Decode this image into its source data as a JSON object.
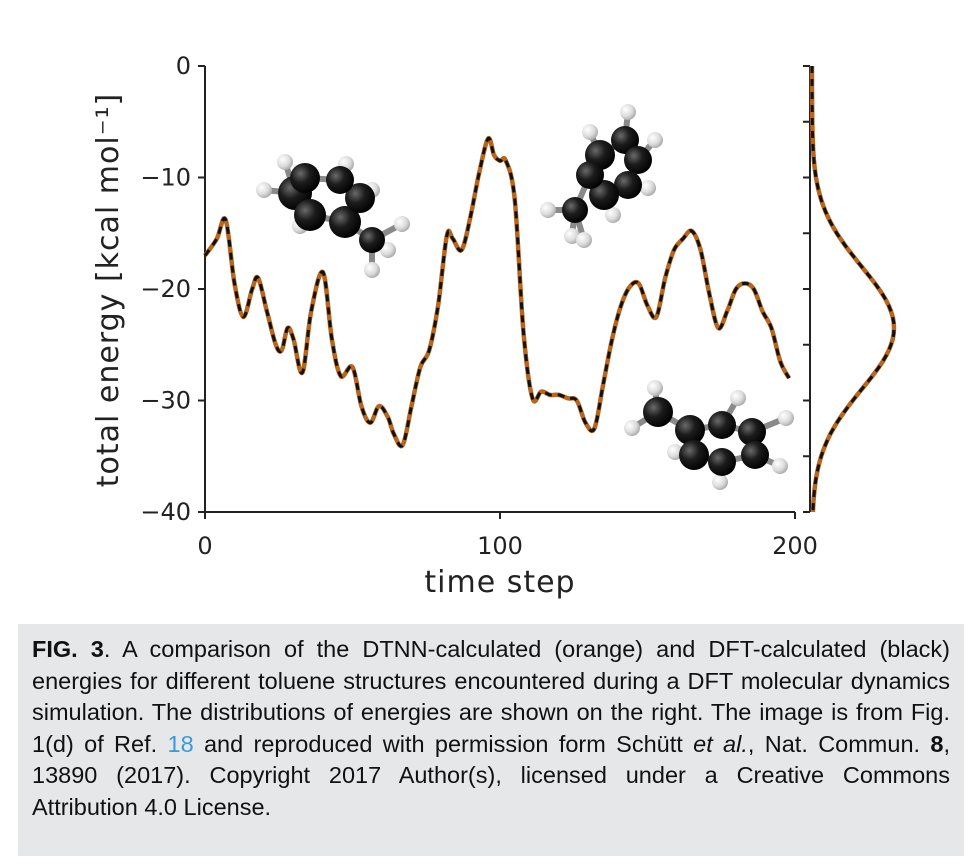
{
  "chart_data": [
    {
      "type": "line",
      "xlabel": "time step",
      "ylabel": "total energy [kcal mol⁻¹]",
      "xlim": [
        0,
        200
      ],
      "ylim": [
        -40,
        0
      ],
      "xticks": [
        "0",
        "100",
        "200"
      ],
      "yticks": [
        "0",
        "−10",
        "−20",
        "−30",
        "−40"
      ],
      "colors": {
        "dtnn": "#b8661e",
        "dft": "#111111"
      },
      "line_styles": {
        "dtnn": "solid",
        "dft": "dashed"
      },
      "x": [
        0,
        4,
        7,
        10,
        13,
        16,
        18,
        21,
        24,
        26,
        28,
        30,
        33,
        36,
        40,
        43,
        46,
        50,
        53,
        56,
        59,
        62,
        64,
        67,
        70,
        73,
        76,
        79,
        82,
        84,
        87,
        90,
        93,
        96,
        98,
        100,
        102,
        105,
        108,
        111,
        114,
        117,
        120,
        123,
        126,
        129,
        132,
        135,
        138,
        141,
        144,
        147,
        150,
        153,
        156,
        159,
        162,
        165,
        168,
        171,
        174,
        177,
        180,
        183,
        186,
        189,
        192,
        195,
        198
      ],
      "series": [
        {
          "values": [
            -17.0,
            -15.5,
            -13.8,
            -19.5,
            -22.5,
            -20.0,
            -19.0,
            -22.0,
            -25.0,
            -25.5,
            -23.5,
            -24.5,
            -27.5,
            -22.0,
            -18.5,
            -24.5,
            -27.8,
            -27.0,
            -30.5,
            -32.0,
            -30.5,
            -31.5,
            -33.0,
            -34.0,
            -30.5,
            -27.0,
            -25.5,
            -21.5,
            -15.2,
            -15.5,
            -16.5,
            -13.5,
            -9.5,
            -6.5,
            -8.0,
            -8.5,
            -8.5,
            -12.0,
            -24.0,
            -29.8,
            -29.2,
            -29.5,
            -29.5,
            -29.8,
            -30.0,
            -32.0,
            -32.5,
            -28.5,
            -24.5,
            -21.5,
            -19.8,
            -19.5,
            -21.5,
            -22.5,
            -19.0,
            -16.5,
            -15.5,
            -14.8,
            -16.5,
            -20.5,
            -23.5,
            -22.0,
            -20.0,
            -19.5,
            -20.0,
            -22.0,
            -23.5,
            -26.5,
            -28.0
          ]
        },
        {
          "values": [
            -17.0,
            -15.5,
            -13.8,
            -19.5,
            -22.5,
            -20.0,
            -19.0,
            -22.0,
            -25.0,
            -25.5,
            -23.5,
            -24.5,
            -27.5,
            -22.0,
            -18.5,
            -24.5,
            -27.8,
            -27.0,
            -30.5,
            -32.0,
            -30.5,
            -31.5,
            -33.0,
            -34.0,
            -30.5,
            -27.0,
            -25.5,
            -21.5,
            -15.2,
            -15.5,
            -16.5,
            -13.5,
            -9.5,
            -6.5,
            -8.0,
            -8.5,
            -8.5,
            -12.0,
            -24.0,
            -29.8,
            -29.2,
            -29.5,
            -29.5,
            -29.8,
            -30.0,
            -32.0,
            -32.5,
            -28.5,
            -24.5,
            -21.5,
            -19.8,
            -19.5,
            -21.5,
            -22.5,
            -19.0,
            -16.5,
            -15.5,
            -14.8,
            -16.5,
            -20.5,
            -23.5,
            -22.0,
            -20.0,
            -19.5,
            -20.0,
            -22.0,
            -23.5,
            -26.5,
            -28.0
          ]
        }
      ]
    },
    {
      "type": "line",
      "orientation": "horizontal distribution of energies (shares energy axis)",
      "ylim": [
        -40,
        0
      ],
      "mean": -23.5,
      "sd": 5.5,
      "colors": {
        "dtnn": "#b8661e",
        "dft": "#111111"
      }
    }
  ],
  "molecules": [
    {
      "name": "toluene-structure"
    },
    {
      "name": "toluene-structure"
    },
    {
      "name": "toluene-structure"
    }
  ],
  "caption": {
    "label": "FIG. 3",
    "t1": ". A comparison of the DTNN-calculated (orange) and DFT-calculated (black) energies for different toluene structures encountered during a DFT molecular dynamics simulation. The distributions of energies are shown on the right. The image is from Fig. 1(d) of Ref. ",
    "ref": "18",
    "t2": " and reproduced with permission form Schütt ",
    "etal": "et al.",
    "t3": ", Nat. Commun. ",
    "vol": "8",
    "t4": ", 13890 (2017). Copyright 2017 Author(s), licensed under a Creative Commons Attribution 4.0 License."
  }
}
